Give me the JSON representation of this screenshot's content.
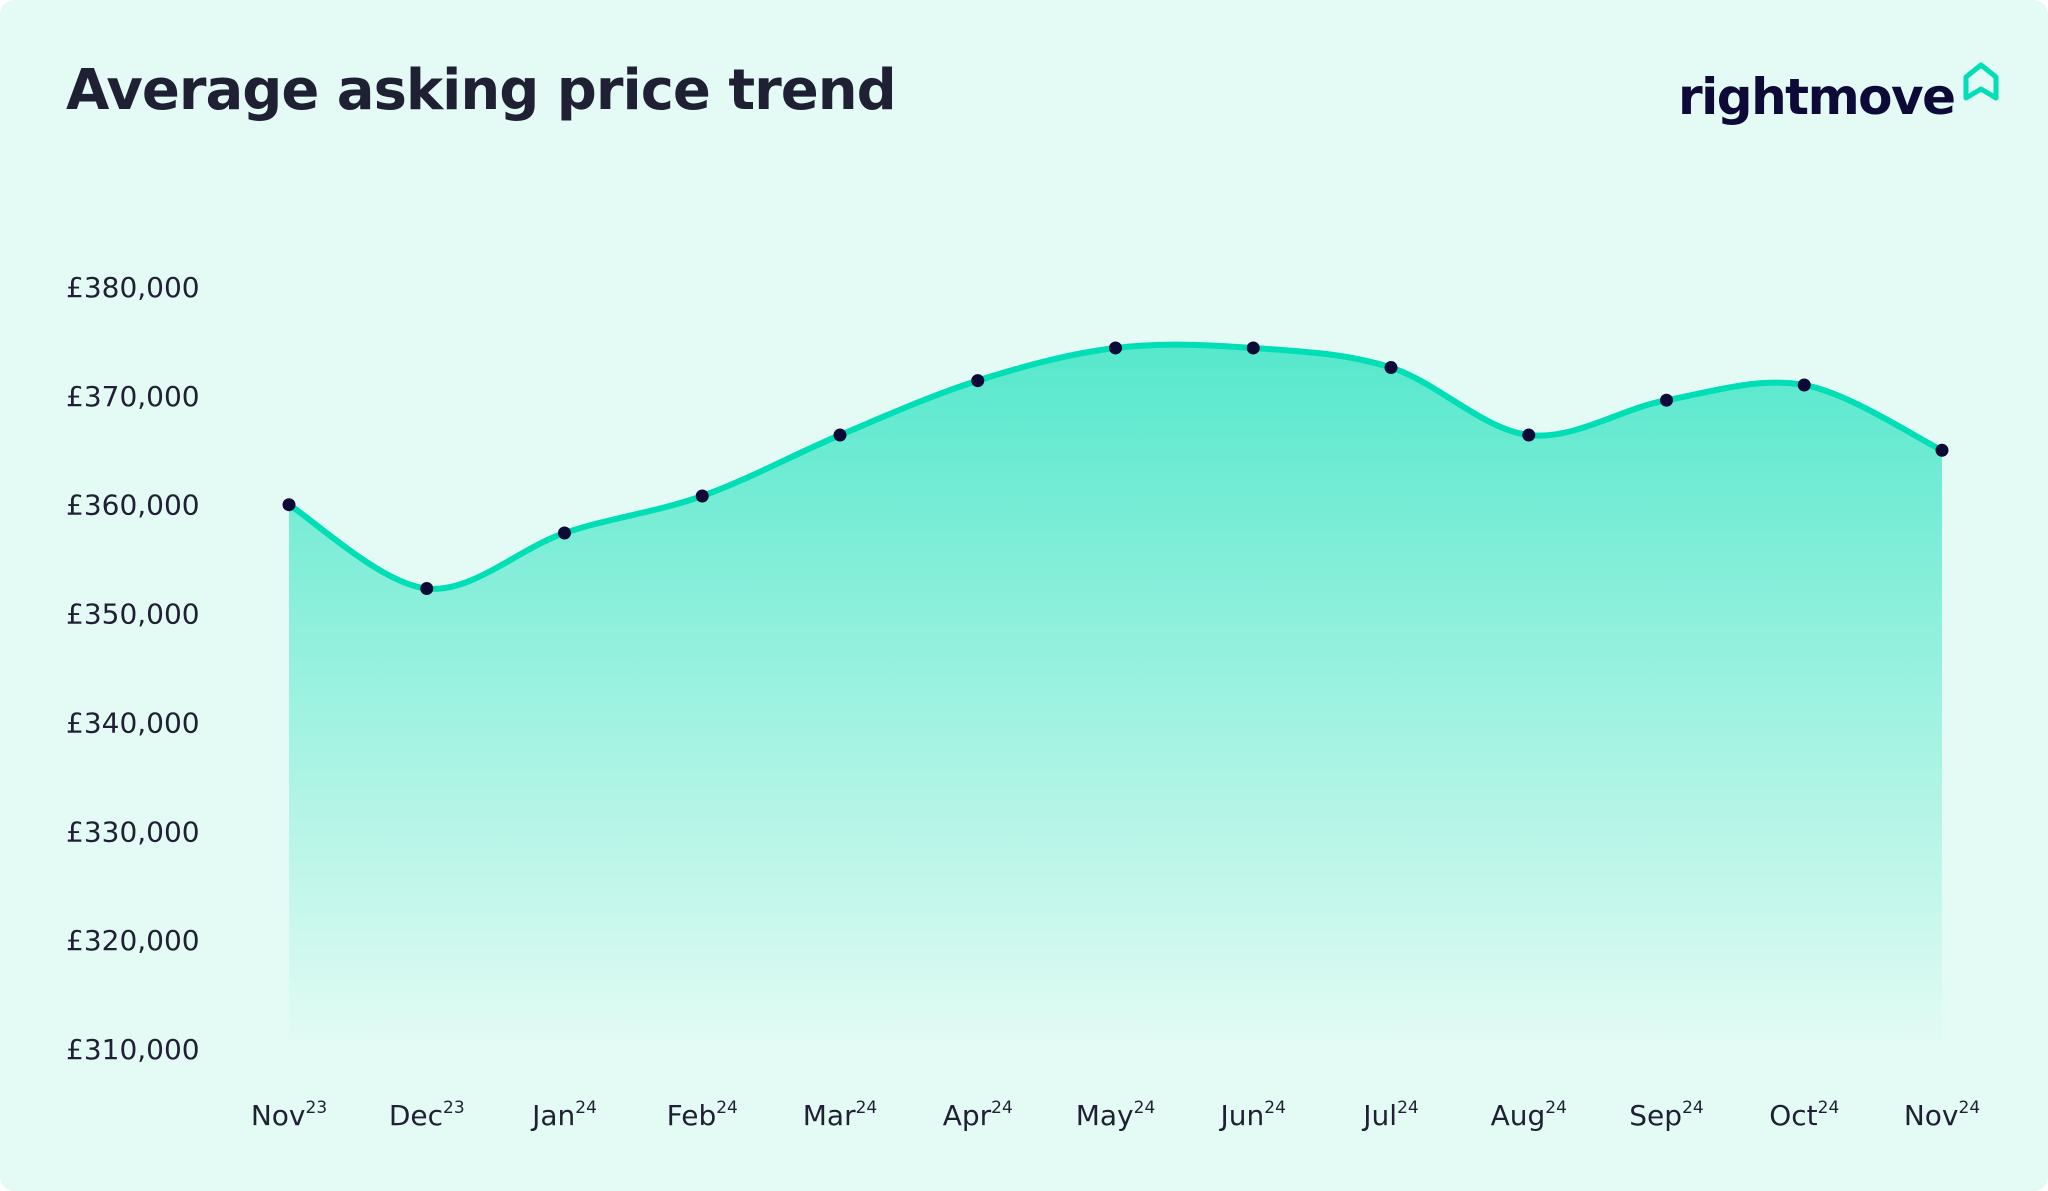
{
  "header": {
    "title": "Average asking price trend",
    "logo_text": "rightmove"
  },
  "colors": {
    "background": "#e3fbf4",
    "line": "#00deb6",
    "point": "#0d0a38",
    "text": "#1f2033"
  },
  "chart_data": {
    "type": "area",
    "title": "Average asking price trend",
    "xlabel": "",
    "ylabel": "",
    "ylim": [
      310000,
      380000
    ],
    "y_ticks": [
      380000,
      370000,
      360000,
      350000,
      340000,
      330000,
      320000,
      310000
    ],
    "y_tick_labels": [
      "£380,000",
      "£370,000",
      "£360,000",
      "£350,000",
      "£340,000",
      "£330,000",
      "£320,000",
      "£310,000"
    ],
    "categories": [
      {
        "month": "Nov",
        "year": "23"
      },
      {
        "month": "Dec",
        "year": "23"
      },
      {
        "month": "Jan",
        "year": "24"
      },
      {
        "month": "Feb",
        "year": "24"
      },
      {
        "month": "Mar",
        "year": "24"
      },
      {
        "month": "Apr",
        "year": "24"
      },
      {
        "month": "May",
        "year": "24"
      },
      {
        "month": "Jun",
        "year": "24"
      },
      {
        "month": "Jul",
        "year": "24"
      },
      {
        "month": "Aug",
        "year": "24"
      },
      {
        "month": "Sep",
        "year": "24"
      },
      {
        "month": "Oct",
        "year": "24"
      },
      {
        "month": "Nov",
        "year": "24"
      }
    ],
    "values": [
      360000,
      352300,
      357400,
      360800,
      366400,
      371400,
      374400,
      374400,
      372600,
      366400,
      369600,
      371000,
      365000
    ],
    "grid": false,
    "legend": "none"
  }
}
